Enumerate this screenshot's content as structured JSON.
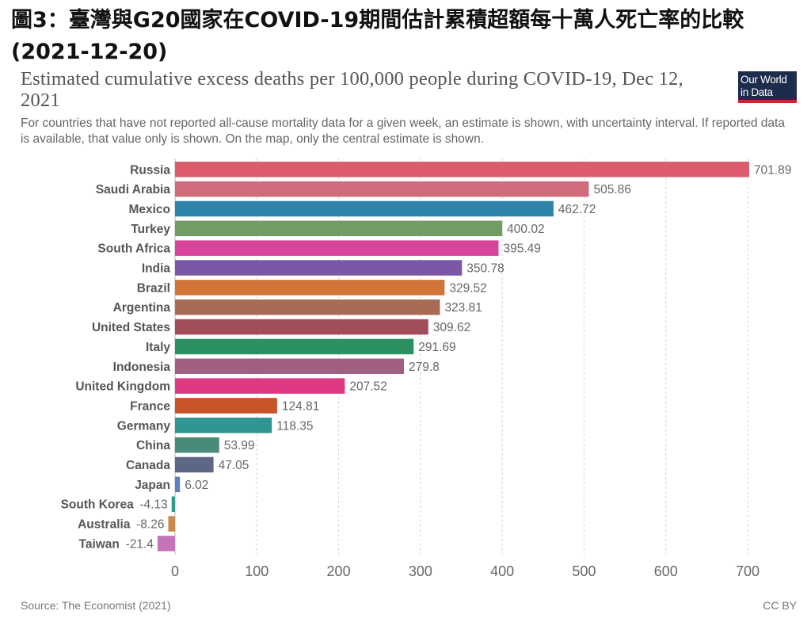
{
  "headline": {
    "line1": "圖3：臺灣與G20國家在COVID-19期間估計累積超額每十萬人死亡率的比較",
    "line2": "(2021-12-20)"
  },
  "logo": {
    "line1": "Our World",
    "line2": "in Data"
  },
  "footer": {
    "source": "Source: The Economist (2021)",
    "license": "CC BY"
  },
  "chart_data": {
    "type": "bar",
    "orientation": "horizontal",
    "title": "Estimated cumulative excess deaths per 100,000 people during COVID-19, Dec 12, 2021",
    "subtitle": "For countries that have not reported all-cause mortality data for a given week, an estimate is shown, with uncertainty interval. If reported data is available, that value only is shown. On the map, only the central estimate is shown.",
    "categories": [
      "Russia",
      "Saudi Arabia",
      "Mexico",
      "Turkey",
      "South Africa",
      "India",
      "Brazil",
      "Argentina",
      "United States",
      "Italy",
      "Indonesia",
      "United Kingdom",
      "France",
      "Germany",
      "China",
      "Canada",
      "Japan",
      "South Korea",
      "Australia",
      "Taiwan"
    ],
    "values": [
      701.89,
      505.86,
      462.72,
      400.02,
      395.49,
      350.78,
      329.52,
      323.81,
      309.62,
      291.69,
      279.8,
      207.52,
      124.81,
      118.35,
      53.99,
      47.05,
      6.02,
      -4.13,
      -8.26,
      -21.4
    ],
    "value_labels": [
      "701.89",
      "505.86",
      "462.72",
      "400.02",
      "395.49",
      "350.78",
      "329.52",
      "323.81",
      "309.62",
      "291.69",
      "279.8",
      "207.52",
      "124.81",
      "118.35",
      "53.99",
      "47.05",
      "6.02",
      "-4.13",
      "-8.26",
      "-21.4"
    ],
    "colors": [
      "#dc5b6c",
      "#d06b7c",
      "#2e85a9",
      "#739c62",
      "#d8449b",
      "#7b58a6",
      "#d07438",
      "#a86b53",
      "#a24e5a",
      "#2b9160",
      "#a06083",
      "#de3a83",
      "#c85428",
      "#2f9692",
      "#4a8a7a",
      "#5b6784",
      "#5c80c0",
      "#2e9b87",
      "#c88a4a",
      "#c374b8"
    ],
    "xlim": [
      0,
      700
    ],
    "xticks": [
      "0",
      "100",
      "200",
      "300",
      "400",
      "500",
      "600",
      "700"
    ],
    "grid": true,
    "xlabel": "",
    "ylabel": ""
  }
}
